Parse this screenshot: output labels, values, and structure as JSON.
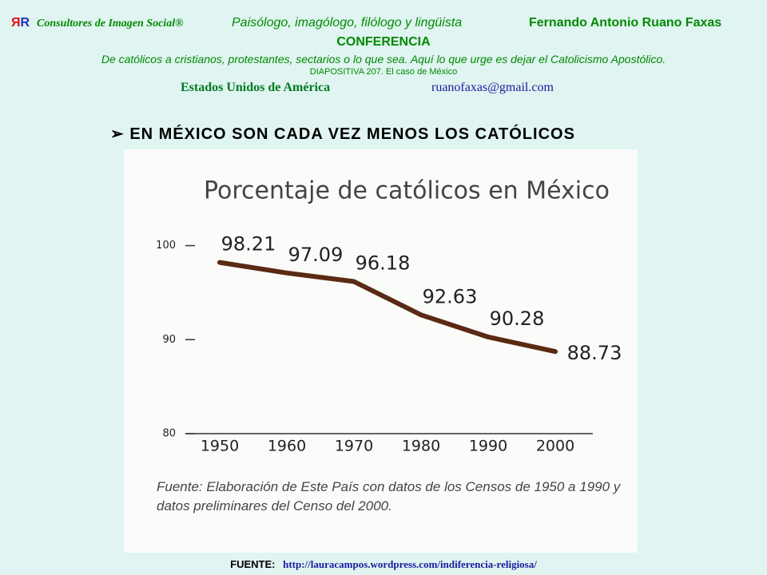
{
  "header": {
    "logo_left": "Я",
    "logo_right": "R",
    "company": "Consultores de Imagen Social®",
    "profession": "Paisólogo, imagólogo, filólogo y lingüista",
    "author": "Fernando Antonio Ruano Faxas",
    "conference": "CONFERENCIA",
    "subtitle": "De católicos a cristianos, protestantes, sectarios o lo que sea.  Aquí lo que urge es dejar el Catolicismo Apostólico.",
    "slide": "DIAPOSITIVA 207. El caso  de México",
    "country": "Estados Unidos de América",
    "email": "ruanofaxas@gmail.com"
  },
  "heading": "EN MÉXICO SON CADA VEZ MENOS LOS CATÓLICOS",
  "chart_data": {
    "type": "line",
    "title": "Porcentaje de católicos en México",
    "categories": [
      "1950",
      "1960",
      "1970",
      "1980",
      "1990",
      "2000"
    ],
    "values": [
      98.21,
      97.09,
      96.18,
      92.63,
      90.28,
      88.73
    ],
    "color": "#5a2a12",
    "ylim": [
      80,
      102
    ],
    "yticks": [
      80,
      90,
      100
    ],
    "source": "Fuente: Elaboración de Este País con datos de los Censos de 1950 a 1990 y datos preliminares del Censo del 2000."
  },
  "footer": {
    "label": "FUENTE:",
    "url": "http://lauracampos.wordpress.com/indiferencia-religiosa/"
  }
}
